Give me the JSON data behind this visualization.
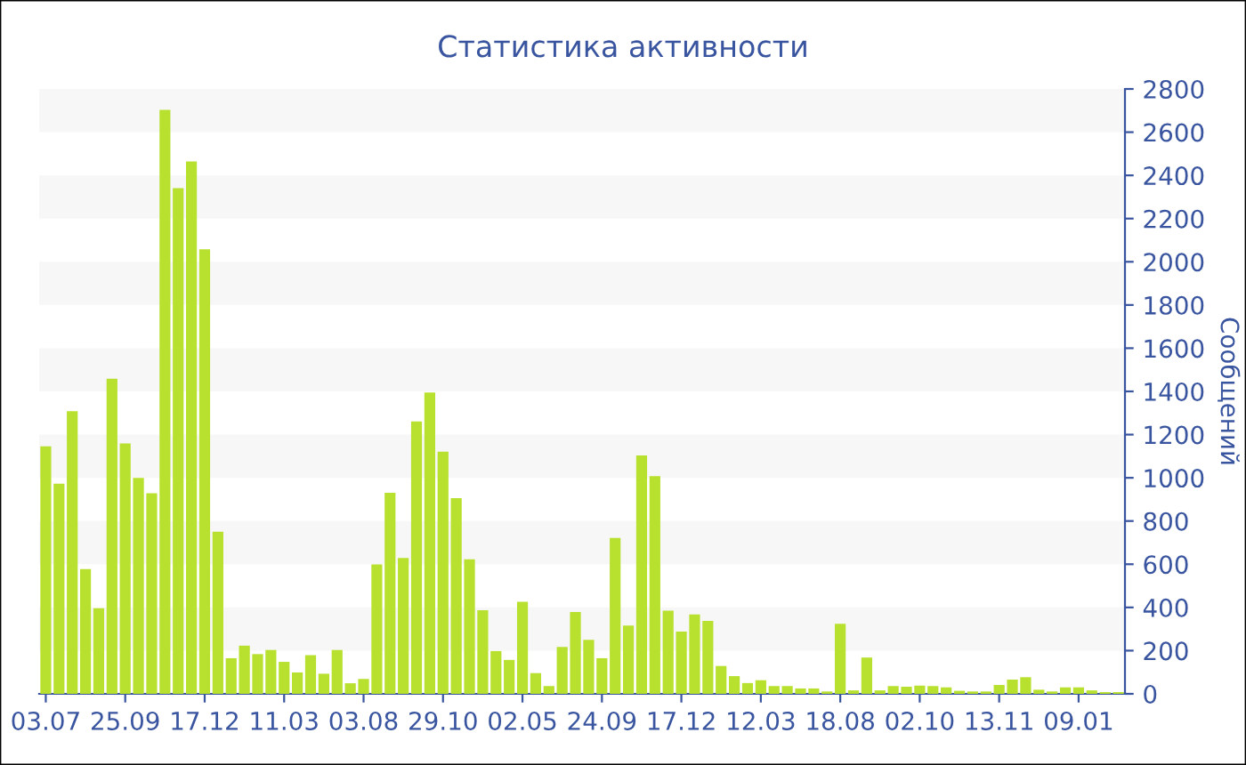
{
  "chart_data": {
    "type": "bar",
    "title": "Статистика активности",
    "ylabel": "Сообщений",
    "categories": [
      "03.07",
      null,
      null,
      null,
      null,
      null,
      "25.09",
      null,
      null,
      null,
      null,
      null,
      "17.12",
      null,
      null,
      null,
      null,
      null,
      "11.03",
      null,
      null,
      null,
      null,
      null,
      "03.08",
      null,
      null,
      null,
      null,
      null,
      "29.10",
      null,
      null,
      null,
      null,
      null,
      "02.05",
      null,
      null,
      null,
      null,
      null,
      "24.09",
      null,
      null,
      null,
      null,
      null,
      "17.12",
      null,
      null,
      null,
      null,
      null,
      "12.03",
      null,
      null,
      null,
      null,
      null,
      "18.08",
      null,
      null,
      null,
      null,
      null,
      "02.10",
      null,
      null,
      null,
      null,
      null,
      "13.11",
      null,
      null,
      null,
      null,
      null,
      "09.01",
      null,
      null,
      null
    ],
    "values": [
      1146,
      973,
      1308,
      577,
      396,
      1459,
      1159,
      1000,
      929,
      2703,
      2341,
      2464,
      2058,
      750,
      165,
      223,
      184,
      203,
      148,
      99,
      179,
      93,
      203,
      49,
      69,
      599,
      931,
      629,
      1261,
      1395,
      1121,
      906,
      623,
      387,
      198,
      157,
      426,
      96,
      36,
      217,
      379,
      250,
      165,
      722,
      316,
      1104,
      1008,
      385,
      288,
      368,
      338,
      129,
      82,
      50,
      63,
      36,
      36,
      25,
      25,
      11,
      324,
      16,
      168,
      16,
      36,
      33,
      38,
      36,
      30,
      14,
      11,
      11,
      41,
      66,
      77,
      19,
      11,
      30,
      30,
      16,
      8,
      8
    ],
    "color": "#b8e02e",
    "ylim": [
      0,
      2800
    ],
    "yticks": [
      0,
      200,
      400,
      600,
      800,
      1000,
      1200,
      1400,
      1600,
      1800,
      2000,
      2200,
      2400,
      2600,
      2800
    ],
    "bands": [
      {
        "axis": "y",
        "from": 200,
        "to": 400,
        "color": "#f7f7f7"
      },
      {
        "axis": "y",
        "from": 600,
        "to": 800,
        "color": "#f7f7f7"
      },
      {
        "axis": "y",
        "from": 1000,
        "to": 1200,
        "color": "#f7f7f7"
      },
      {
        "axis": "y",
        "from": 1400,
        "to": 1600,
        "color": "#f7f7f7"
      },
      {
        "axis": "y",
        "from": 1800,
        "to": 2000,
        "color": "#f7f7f7"
      },
      {
        "axis": "y",
        "from": 2200,
        "to": 2400,
        "color": "#f7f7f7"
      },
      {
        "axis": "y",
        "from": 2600,
        "to": 2800,
        "color": "#f7f7f7"
      }
    ]
  }
}
